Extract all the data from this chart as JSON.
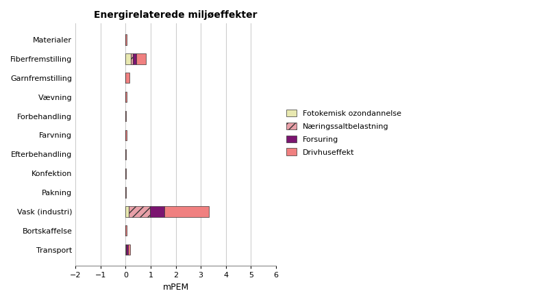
{
  "title": "Energirelaterede miljøeffekter",
  "xlabel": "mPEM",
  "categories": [
    "Transport",
    "Bortskaffelse",
    "Vask (industri)",
    "Pakning",
    "Konfektion",
    "Efterbehandling",
    "Farvning",
    "Forbehandling",
    "Vævning",
    "Garnfremstilling",
    "Fiberfremstilling",
    "Materialer"
  ],
  "series": {
    "Fotokemisk ozondannelse": {
      "color": "#e8e8b0",
      "hatch": null,
      "values": [
        0.02,
        0.0,
        0.12,
        0.0,
        0.0,
        0.0,
        0.0,
        0.0,
        0.0,
        0.0,
        0.22,
        0.0
      ]
    },
    "Næringssaltbelastning": {
      "color": "#e8a0a8",
      "hatch": "///",
      "values": [
        0.0,
        0.0,
        0.85,
        0.0,
        0.0,
        0.0,
        0.0,
        0.0,
        0.0,
        0.0,
        0.08,
        0.0
      ]
    },
    "Forsuring": {
      "color": "#7b1570",
      "hatch": null,
      "values": [
        0.07,
        0.0,
        0.58,
        0.0,
        0.0,
        0.0,
        0.0,
        0.0,
        0.0,
        0.0,
        0.13,
        0.0
      ]
    },
    "Drivhuseffekt": {
      "color": "#f08080",
      "hatch": null,
      "values": [
        0.08,
        0.05,
        1.78,
        0.02,
        0.02,
        0.02,
        0.05,
        0.03,
        0.05,
        0.15,
        0.38,
        0.05
      ]
    }
  },
  "xlim": [
    -2,
    6
  ],
  "xticks": [
    -2,
    -1,
    0,
    1,
    2,
    3,
    4,
    5,
    6
  ],
  "background_color": "#ffffff",
  "grid_color": "#c8c8c8",
  "figwidth": 8.04,
  "figheight": 4.41,
  "dpi": 100
}
